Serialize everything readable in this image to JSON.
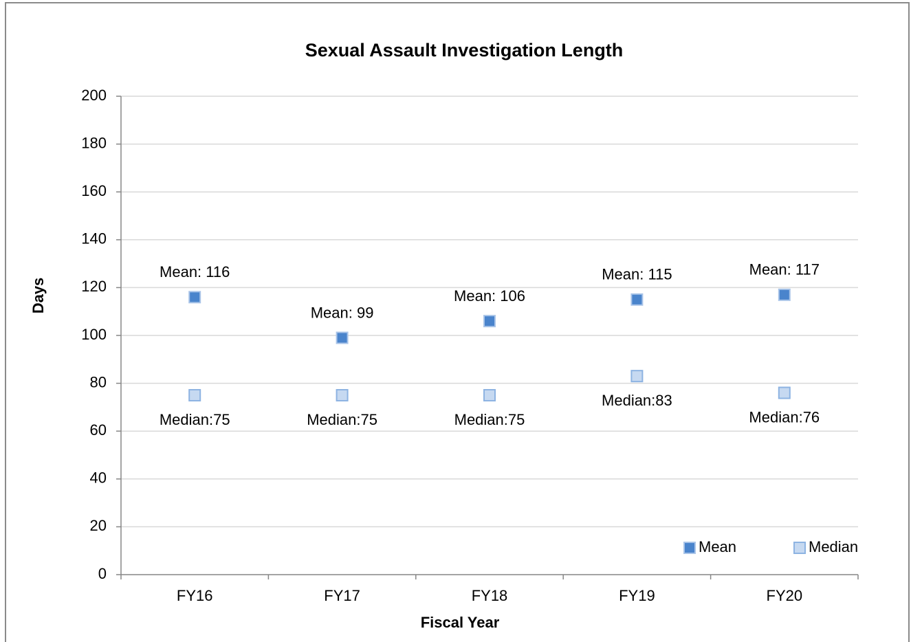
{
  "chart_data": {
    "type": "scatter",
    "title": "Sexual Assault Investigation Length",
    "x_label": "Fiscal Year",
    "y_label": "Days",
    "categories": [
      "FY16",
      "FY17",
      "FY18",
      "FY19",
      "FY20"
    ],
    "series": [
      {
        "name": "Mean",
        "color": "#4a84cc",
        "values": [
          116,
          99,
          106,
          115,
          117
        ],
        "value_labels": [
          "Mean: 116",
          "Mean: 99",
          "Mean: 106",
          "Mean: 115",
          "Mean: 117"
        ]
      },
      {
        "name": "Median",
        "color": "#c6d9f1",
        "values": [
          75,
          75,
          75,
          83,
          76
        ],
        "value_labels": [
          "Median:75",
          "Median:75",
          "Median:75",
          "Median:83",
          "Median:76"
        ]
      }
    ],
    "ylim": [
      0,
      200
    ],
    "yticks": [
      0,
      20,
      40,
      60,
      80,
      100,
      120,
      140,
      160,
      180,
      200
    ],
    "grid": true,
    "legend": "lower right"
  }
}
